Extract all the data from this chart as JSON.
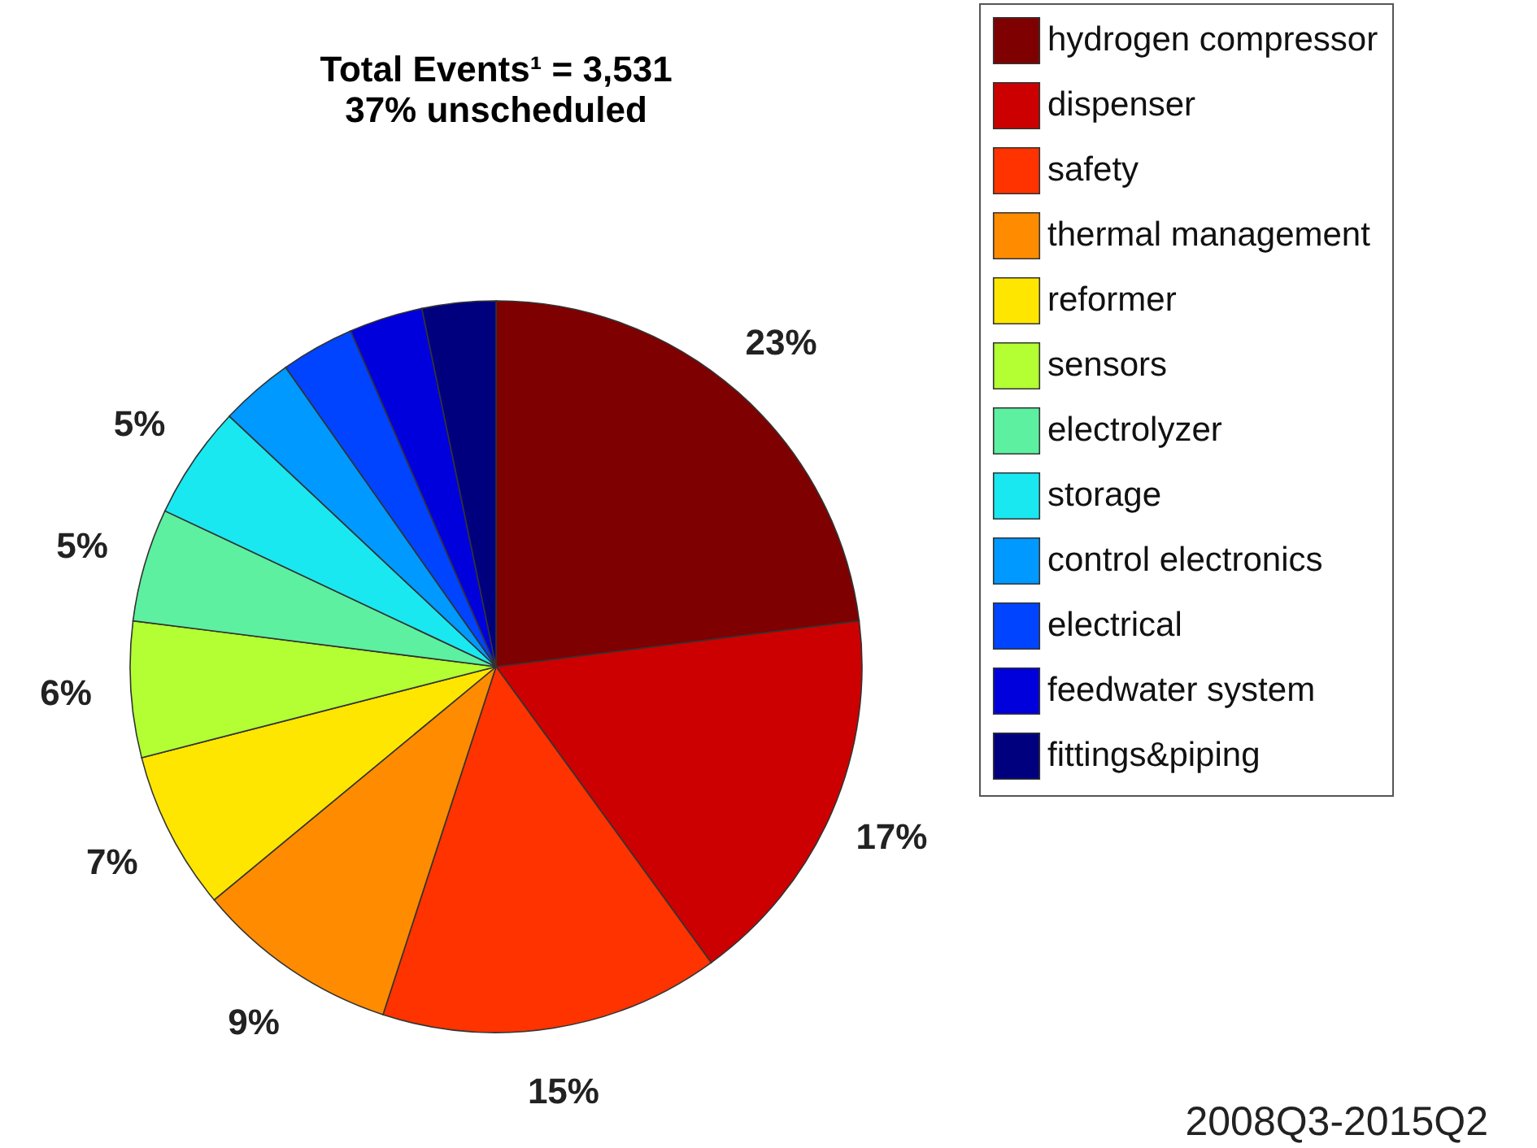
{
  "chart_data": {
    "type": "pie",
    "title": "Total Events¹ = 3,531",
    "subtitle": "37% unscheduled",
    "categories": [
      "hydrogen compressor",
      "dispenser",
      "safety",
      "thermal management",
      "reformer",
      "sensors",
      "electrolyzer",
      "storage",
      "control electronics",
      "electrical",
      "feedwater system",
      "fittings&piping"
    ],
    "values": [
      23,
      17,
      15,
      9,
      7,
      6,
      5,
      5,
      3.25,
      3.25,
      3.25,
      3.25
    ],
    "value_labels": [
      "23%",
      "17%",
      "15%",
      "9%",
      "7%",
      "6%",
      "5%",
      "5%",
      null,
      null,
      null,
      null
    ],
    "colors": [
      "#7f0000",
      "#cc0000",
      "#ff3300",
      "#ff8c00",
      "#ffe600",
      "#b3ff33",
      "#5cf0a0",
      "#1ae8f0",
      "#0099ff",
      "#0044ff",
      "#0000dd",
      "#00007f"
    ],
    "legend": "right",
    "annotations": [
      "2008Q3-2015Q2"
    ]
  }
}
